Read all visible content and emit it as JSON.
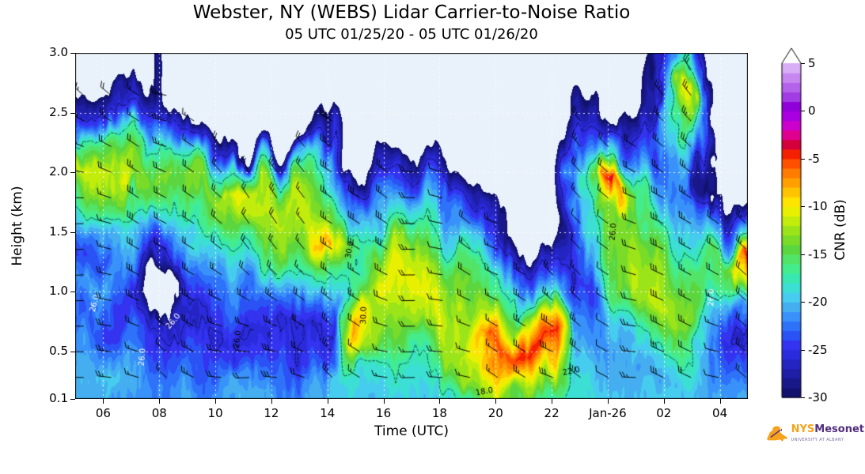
{
  "title": "Webster, NY (WEBS) Lidar Carrier-to-Noise Ratio",
  "subtitle": "05 UTC 01/25/20 - 05 UTC 01/26/20",
  "axes": {
    "x": {
      "label": "Time (UTC)",
      "range": [
        5,
        29
      ],
      "ticks": [
        {
          "hour": 6,
          "label": "06"
        },
        {
          "hour": 8,
          "label": "08"
        },
        {
          "hour": 10,
          "label": "10"
        },
        {
          "hour": 12,
          "label": "12"
        },
        {
          "hour": 14,
          "label": "14"
        },
        {
          "hour": 16,
          "label": "16"
        },
        {
          "hour": 18,
          "label": "18"
        },
        {
          "hour": 20,
          "label": "20"
        },
        {
          "hour": 22,
          "label": "22"
        },
        {
          "hour": 24,
          "label": "Jan-26"
        },
        {
          "hour": 26,
          "label": "02"
        },
        {
          "hour": 28,
          "label": "04"
        }
      ]
    },
    "y": {
      "label": "Height (km)",
      "range": [
        0.1,
        3.0
      ],
      "ticks": [
        {
          "km": 3.0,
          "label": "3.0"
        },
        {
          "km": 2.5,
          "label": "2.5"
        },
        {
          "km": 2.0,
          "label": "2.0"
        },
        {
          "km": 1.5,
          "label": "1.5"
        },
        {
          "km": 1.0,
          "label": "1.0"
        },
        {
          "km": 0.5,
          "label": "0.5"
        },
        {
          "km": 0.1,
          "label": "0.1"
        }
      ]
    }
  },
  "colorbar": {
    "label": "CNR (dB)",
    "range": [
      -30,
      5
    ],
    "extend_above": true,
    "ticks": [
      {
        "v": 5,
        "label": "5"
      },
      {
        "v": 0,
        "label": "0"
      },
      {
        "v": -5,
        "label": "-5"
      },
      {
        "v": -10,
        "label": "-10"
      },
      {
        "v": -15,
        "label": "-15"
      },
      {
        "v": -20,
        "label": "-20"
      },
      {
        "v": -25,
        "label": "-25"
      },
      {
        "v": -30,
        "label": "-30"
      }
    ],
    "stops": [
      [
        -30,
        "#12126e"
      ],
      [
        -29,
        "#18188a"
      ],
      [
        -28,
        "#1e1ea6"
      ],
      [
        -27,
        "#2424c2"
      ],
      [
        -26,
        "#2b2bde"
      ],
      [
        -25,
        "#3333f0"
      ],
      [
        -24,
        "#2a52f5"
      ],
      [
        -23,
        "#2e72fa"
      ],
      [
        -22,
        "#3892fa"
      ],
      [
        -21,
        "#44aef0"
      ],
      [
        -20,
        "#46ccee"
      ],
      [
        -19,
        "#3cdfd3"
      ],
      [
        -18,
        "#38e8b0"
      ],
      [
        -17,
        "#44ec8c"
      ],
      [
        -16,
        "#52e468"
      ],
      [
        -15,
        "#5cd63e"
      ],
      [
        -14,
        "#7adc28"
      ],
      [
        -13,
        "#9ce41a"
      ],
      [
        -12,
        "#c2ec0c"
      ],
      [
        -11,
        "#e8f000"
      ],
      [
        -10,
        "#ffe400"
      ],
      [
        -9,
        "#ffc400"
      ],
      [
        -8,
        "#ffa000"
      ],
      [
        -7,
        "#ff7c00"
      ],
      [
        -6,
        "#ff5000"
      ],
      [
        -5,
        "#f52000"
      ],
      [
        -4,
        "#d4003c"
      ],
      [
        -3,
        "#e00090"
      ],
      [
        -2,
        "#cc00cc"
      ],
      [
        -1,
        "#a800e0"
      ],
      [
        0,
        "#9000d8"
      ],
      [
        1,
        "#a23ce4"
      ],
      [
        2,
        "#b462ea"
      ],
      [
        3,
        "#c688f0"
      ],
      [
        4,
        "#d8aef6"
      ],
      [
        5,
        "#eed6fc"
      ]
    ]
  },
  "chart_data": {
    "type": "heatmap",
    "title": "Webster, NY (WEBS) Lidar Carrier-to-Noise Ratio",
    "xlabel": "Time (UTC)",
    "ylabel": "Height (km)",
    "value_label": "CNR (dB)",
    "value_range": [
      -30,
      5
    ],
    "x_hours": [
      5,
      6,
      7,
      8,
      9,
      10,
      11,
      12,
      13,
      14,
      15,
      16,
      17,
      18,
      19,
      20,
      21,
      22,
      23,
      24,
      25,
      26,
      27,
      28,
      29
    ],
    "x_note": "UTC hour; 24 and above are Jan-26",
    "heights_km": [
      0.1,
      0.3,
      0.5,
      0.7,
      0.9,
      1.1,
      1.3,
      1.5,
      1.7,
      1.9,
      2.1,
      2.3,
      2.5,
      2.7,
      2.9
    ],
    "value_note": "approximate CNR (dB) read from contour colors; null = no signal (background)",
    "cnr_db_by_height": [
      [
        -21,
        -21,
        -22,
        -22,
        -22,
        -21,
        -21,
        -21,
        -21,
        -21,
        -20,
        -20,
        -20,
        -20,
        -19,
        -14,
        -17,
        -18,
        -19,
        -20,
        -20,
        -20,
        -20,
        -21,
        -21
      ],
      [
        -21,
        -20,
        -21,
        -23,
        -24,
        -22,
        -22,
        -23,
        -23,
        -22,
        -18,
        -19,
        -19,
        -18,
        -12,
        -8,
        -13,
        -9,
        -20,
        -21,
        -21,
        -21,
        -20,
        -22,
        -23
      ],
      [
        -22,
        -22,
        -23,
        -25,
        -26,
        -24,
        -25,
        -25,
        -26,
        -25,
        -9,
        -16,
        -17,
        -15,
        -10,
        -6,
        -5,
        -5,
        -21,
        -22,
        -20,
        -19,
        -18,
        -24,
        -25
      ],
      [
        -23,
        -24,
        -25,
        -27,
        -27,
        -26,
        -26,
        -26,
        -26,
        -26,
        -7,
        -14,
        -13,
        -12,
        -14,
        -12,
        -10,
        -11,
        -23,
        -21,
        -17,
        -15,
        -16,
        -26,
        -27
      ],
      [
        -24,
        -23,
        -26,
        null,
        -26,
        -25,
        -24,
        -24,
        -23,
        -24,
        -15,
        -12,
        -11,
        -11,
        -15,
        -16,
        -18,
        -19,
        -26,
        -19,
        -14,
        -12,
        -14,
        -24,
        -22
      ],
      [
        -22,
        -21,
        -23,
        null,
        -24,
        -23,
        -21,
        -21,
        -19,
        -20,
        -17,
        -11,
        -11,
        -12,
        -16,
        -18,
        -23,
        -24,
        -27,
        -17,
        -12,
        -13,
        -15,
        -18,
        -10
      ],
      [
        -25,
        -24,
        -21,
        -27,
        -22,
        -20,
        -18,
        -17,
        -15,
        -16,
        -18,
        -13,
        -12,
        -14,
        -19,
        -21,
        -27,
        -28,
        -25,
        -16,
        -12,
        -14,
        -17,
        -14,
        -4
      ],
      [
        -23,
        -22,
        -19,
        -24,
        -20,
        -17,
        -15,
        -14,
        -13,
        -8,
        -20,
        -18,
        -16,
        -17,
        -23,
        -25,
        null,
        null,
        -23,
        -15,
        -13,
        -16,
        -19,
        -22,
        -18
      ],
      [
        -18,
        -17,
        -15,
        -20,
        -17,
        -14,
        -12,
        -12,
        -12,
        -14,
        -23,
        -22,
        -19,
        -21,
        -27,
        -28,
        null,
        null,
        -21,
        -14,
        -15,
        -19,
        -21,
        -27,
        -26
      ],
      [
        -15,
        -13,
        -11,
        -16,
        -14,
        -13,
        -11,
        -13,
        -15,
        -17,
        -27,
        -26,
        -24,
        -25,
        null,
        null,
        null,
        null,
        -20,
        -3,
        -17,
        -22,
        -23,
        null,
        null
      ],
      [
        -11,
        -12,
        -13,
        -14,
        -18,
        -19,
        -20,
        -21,
        -23,
        -19,
        null,
        -29,
        -28,
        -29,
        null,
        null,
        null,
        null,
        -24,
        -18,
        -21,
        -24,
        -20,
        null,
        null
      ],
      [
        -20,
        -16,
        -18,
        -17,
        -24,
        -26,
        null,
        null,
        null,
        -22,
        null,
        null,
        null,
        null,
        null,
        null,
        null,
        null,
        -27,
        -26,
        -26,
        -25,
        -16,
        null,
        null
      ],
      [
        -26,
        -24,
        -26,
        -22,
        -28,
        null,
        null,
        null,
        null,
        -27,
        null,
        null,
        null,
        null,
        null,
        null,
        null,
        null,
        -29,
        null,
        null,
        -26,
        -12,
        null,
        null
      ],
      [
        -29,
        -29,
        -29,
        -27,
        null,
        null,
        null,
        null,
        null,
        null,
        null,
        null,
        null,
        null,
        null,
        null,
        null,
        null,
        null,
        null,
        null,
        -28,
        -10,
        null,
        null
      ],
      [
        null,
        null,
        null,
        -29,
        null,
        null,
        null,
        null,
        null,
        null,
        null,
        null,
        null,
        null,
        null,
        null,
        null,
        null,
        null,
        null,
        null,
        -29,
        -18,
        null,
        null
      ]
    ]
  },
  "overlays": {
    "wind_barbs": true,
    "barb_color": "#000000",
    "dashed_contours": true,
    "contour_levels_dashed": [
      -26,
      -18
    ],
    "gridline_color": "#ffffff"
  },
  "annotations": {
    "contour_labels": [
      {
        "text": "26.0",
        "t": 5.7,
        "h": 0.9,
        "rot": -75,
        "color": "#ffffff"
      },
      {
        "text": "26.0",
        "t": 7.4,
        "h": 0.45,
        "rot": -85,
        "color": "#ffffff"
      },
      {
        "text": "26.0",
        "t": 8.5,
        "h": 0.75,
        "rot": -50,
        "color": "#ffffff"
      },
      {
        "text": "26.0",
        "t": 10.8,
        "h": 0.6,
        "rot": -85,
        "color": "#000000"
      },
      {
        "text": "30.0",
        "t": 15.3,
        "h": 0.8,
        "rot": -88,
        "color": "#000000"
      },
      {
        "text": "30.0",
        "t": 14.8,
        "h": 1.35,
        "rot": -80,
        "color": "#000000"
      },
      {
        "text": "18.0",
        "t": 19.6,
        "h": 0.16,
        "rot": -10,
        "color": "#000000"
      },
      {
        "text": "22.0",
        "t": 22.7,
        "h": 0.33,
        "rot": -12,
        "color": "#000000"
      },
      {
        "text": "26.0",
        "t": 24.2,
        "h": 1.5,
        "rot": -85,
        "color": "#000000"
      },
      {
        "text": "26.0",
        "t": 27.7,
        "h": 0.95,
        "rot": -88,
        "color": "#ffffff"
      }
    ]
  },
  "colors": {
    "fig_bg": "#ffffff",
    "plot_bg": "#e9f1fa",
    "frame": "#000000"
  },
  "logo": {
    "name_part1": "NYS",
    "name_part2": "Mesonet",
    "tagline": "UNIVERSITY AT ALBANY",
    "state_color": "#f6a21d",
    "text_color": "#512d7e"
  }
}
